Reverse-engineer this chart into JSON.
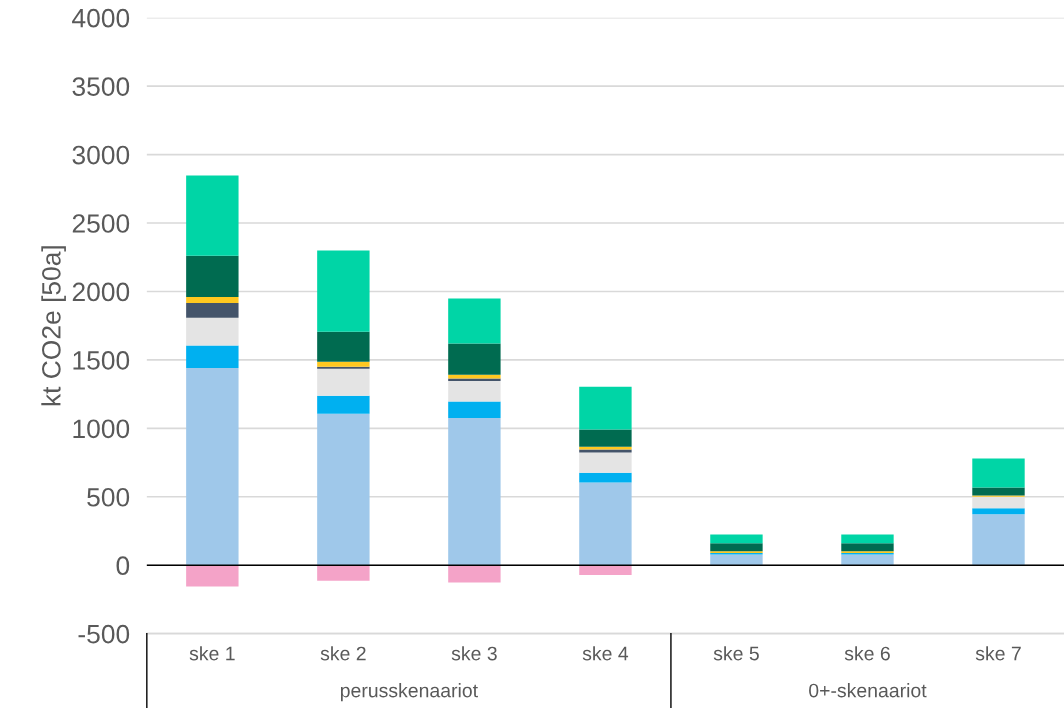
{
  "chart_data": {
    "type": "bar",
    "stacked": true,
    "ylabel": "kt CO2e [50a]",
    "categories": [
      "ske 1",
      "ske 2",
      "ske 3",
      "ske 4",
      "ske 5",
      "ske 6",
      "ske 7"
    ],
    "annotations": [
      "perusskenaariot",
      "0+-skenaariot"
    ],
    "series": [
      {
        "color": "#f4a3c8",
        "values": [
          -156,
          -113,
          -127,
          -71,
          0,
          0,
          0
        ]
      },
      {
        "color": "#9fc8ea",
        "values": [
          1440,
          1106,
          1075,
          604,
          78,
          78,
          373
        ]
      },
      {
        "color": "#00b0f0",
        "values": [
          165,
          132,
          121,
          71,
          12,
          12,
          44
        ]
      },
      {
        "color": "#e4e4e4",
        "values": [
          203,
          197,
          149,
          148,
          null,
          null,
          83
        ]
      },
      {
        "color": "#44546a",
        "values": [
          107,
          15,
          19,
          22,
          0,
          0,
          0
        ]
      },
      {
        "color": "#ffc820",
        "values": [
          44,
          37,
          27,
          20,
          12,
          12,
          10
        ]
      },
      {
        "color": "#006b50",
        "values": [
          302,
          219,
          229,
          127,
          58,
          58,
          58
        ]
      },
      {
        "color": "#00d5a6",
        "values": [
          587,
          594,
          329,
          312,
          64,
          64,
          212
        ]
      }
    ],
    "ylim": [
      -500,
      4000
    ],
    "yticks": [
      -500,
      0,
      500,
      1000,
      1500,
      2000,
      2500,
      3000,
      3500,
      4000
    ],
    "grid": "y",
    "legend": false
  }
}
